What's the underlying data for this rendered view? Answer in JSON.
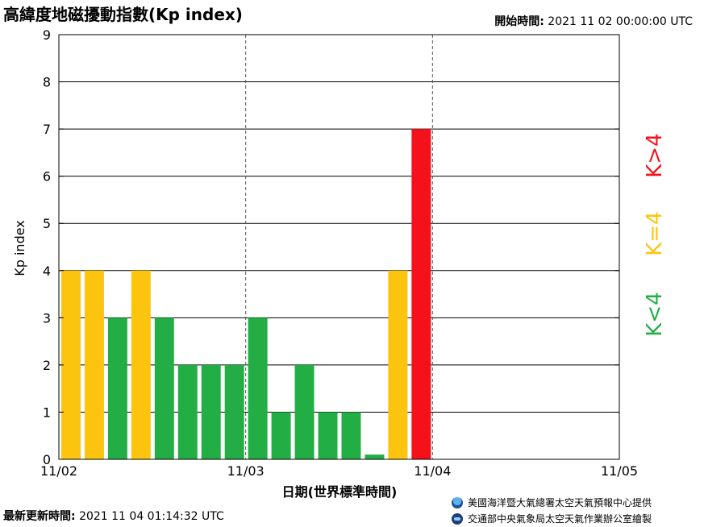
{
  "header": {
    "title": "高緯度地磁擾動指數(Kp index)",
    "start_label": "開始時間:",
    "start_value": "2021 11 02 00:00:00 UTC"
  },
  "footer": {
    "update_label": "最新更新時間:",
    "update_value": "2021 11 04 01:14:32 UTC",
    "credit_noaa": "美國海洋暨大氣總署太空天氣預報中心提供",
    "credit_cwb": "交通部中央氣象局太空天氣作業辦公室繪製"
  },
  "colors": {
    "green": "#22ad45",
    "yellow": "#fcc40f",
    "red": "#f4111a"
  },
  "chart_data": {
    "type": "bar",
    "title": "高緯度地磁擾動指數(Kp index)",
    "xlabel": "日期(世界標準時間)",
    "ylabel": "Kp index",
    "ylim": [
      0,
      9
    ],
    "yticks": [
      "0",
      "1",
      "2",
      "3",
      "4",
      "5",
      "6",
      "7",
      "8",
      "9"
    ],
    "xticks": [
      "11/02",
      "11/03",
      "11/04",
      "11/05"
    ],
    "bar_interval_hours": 3,
    "x_start": "2021-11-02",
    "values": [
      4,
      4,
      3,
      4,
      3,
      2,
      2,
      2,
      3,
      1,
      2,
      1,
      1,
      0.1,
      4,
      7
    ],
    "legend": [
      {
        "label": "K>4",
        "color": "#f4111a"
      },
      {
        "label": "K=4",
        "color": "#fcc40f"
      },
      {
        "label": "K<4",
        "color": "#22ad45"
      }
    ],
    "legend_position": "right",
    "grid": true
  }
}
